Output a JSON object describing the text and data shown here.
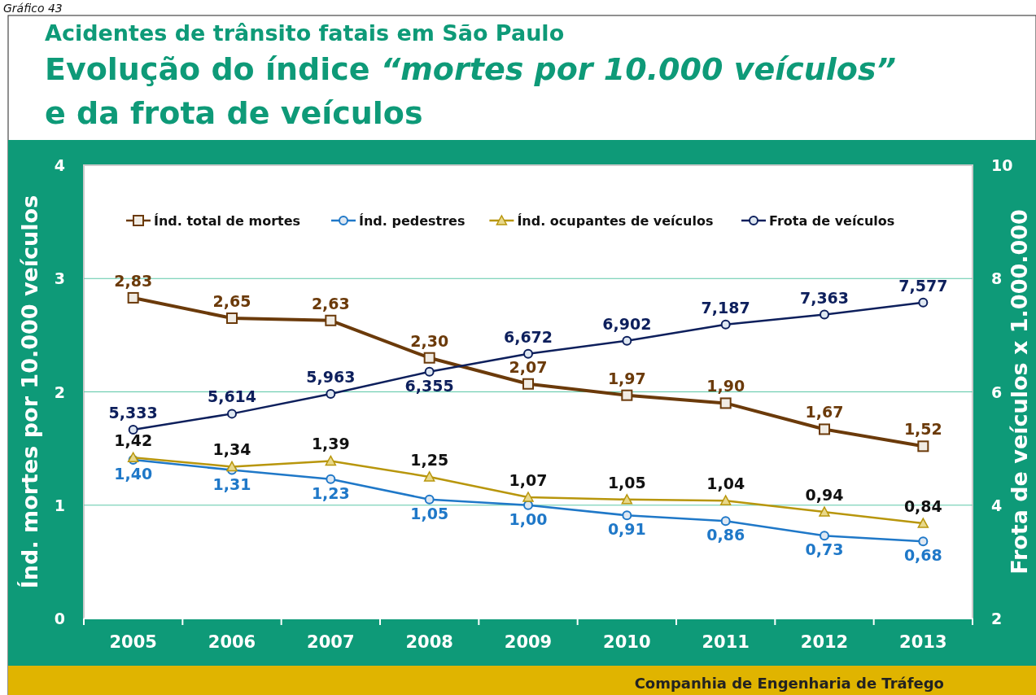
{
  "chart_data": {
    "type": "line",
    "title": "Acidentes de trânsito fatais em São Paulo",
    "subtitle": "Evolução do índice “mortes por 10.000 veículos” e da frota de veículos",
    "ylabel": "Índ. mortes por 10.000 veículos",
    "y2label": "Frota de veículos x 1.000.000",
    "annotations": [
      "Gráfico 43",
      "Companhia de Engenharia de Tráfego"
    ],
    "categories": [
      "2005",
      "2006",
      "2007",
      "2008",
      "2009",
      "2010",
      "2011",
      "2012",
      "2013"
    ],
    "ylim": [
      0,
      4
    ],
    "yticks": [
      0,
      1,
      2,
      3,
      4
    ],
    "y2lim": [
      2,
      10
    ],
    "y2ticks": [
      2,
      4,
      6,
      8,
      10
    ],
    "grid": "y",
    "legend": "top",
    "series": [
      {
        "name": "Índ. total de mortes",
        "color": "#6b3a0a",
        "marker": "square",
        "values": [
          2.83,
          2.65,
          2.63,
          2.3,
          2.07,
          1.97,
          1.9,
          1.67,
          1.52
        ],
        "value_labels": [
          "2,83",
          "2,65",
          "2,63",
          "2,30",
          "2,07",
          "1,97",
          "1,90",
          "1,67",
          "1,52"
        ]
      },
      {
        "name": "Índ. pedestres",
        "color": "#1f78c8",
        "marker": "circle",
        "values": [
          1.4,
          1.31,
          1.23,
          1.05,
          1.0,
          0.91,
          0.86,
          0.73,
          0.68
        ],
        "value_labels": [
          "1,40",
          "1,31",
          "1,23",
          "1,05",
          "1,00",
          "0,91",
          "0,86",
          "0,73",
          "0,68"
        ]
      },
      {
        "name": "Índ. ocupantes de veículos",
        "color": "#b8960c",
        "marker": "triangle",
        "values": [
          1.42,
          1.34,
          1.39,
          1.25,
          1.07,
          1.05,
          1.04,
          0.94,
          0.84
        ],
        "value_labels": [
          "1,42",
          "1,34",
          "1,39",
          "1,25",
          "1,07",
          "1,05",
          "1,04",
          "0,94",
          "0,84"
        ]
      },
      {
        "name": "Frota de veículos",
        "color": "#0d1f5c",
        "marker": "circle",
        "axis": "y2",
        "values": [
          5.333,
          5.614,
          5.963,
          6.355,
          6.672,
          6.902,
          7.187,
          7.363,
          7.577
        ],
        "value_labels": [
          "5,333",
          "5,614",
          "5,963",
          "6,355",
          "6,672",
          "6,902",
          "7,187",
          "7,363",
          "7,577"
        ]
      }
    ]
  }
}
